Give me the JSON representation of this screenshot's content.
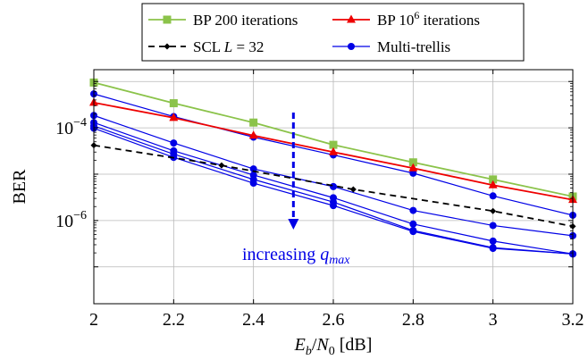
{
  "chart_data": {
    "type": "line",
    "title": "",
    "xlabel": "E_b/N_0 [dB]",
    "ylabel": "BER",
    "yscale": "log",
    "xlim": [
      2,
      3.2
    ],
    "ylim": [
      1.6e-08,
      0.0018
    ],
    "x_ticks": [
      "2",
      "2.2",
      "2.4",
      "2.6",
      "2.8",
      "3",
      "3.2"
    ],
    "y_ticks": [
      {
        "base": "10",
        "exp": "−4",
        "value": 0.0001
      },
      {
        "base": "10",
        "exp": "−6",
        "value": 1e-06
      }
    ],
    "grid": true,
    "legend_position": "top",
    "annotation": {
      "text": "increasing",
      "var": "q",
      "sub": "max",
      "color": "#0000e6",
      "x": 2.5
    },
    "series": [
      {
        "name": "BP 200 iterations",
        "color": "#8bc34a",
        "marker": "square",
        "dash": false,
        "x": [
          2,
          2.2,
          2.4,
          2.6,
          2.8,
          3,
          3.2
        ],
        "y": [
          0.00095,
          0.00034,
          0.00013,
          4.3e-05,
          1.8e-05,
          7.7e-06,
          3.3e-06
        ]
      },
      {
        "name": "BP 10^6 iterations",
        "label_base": "BP 10",
        "label_sup": "6",
        "label_rest": " iterations",
        "color": "#ee0000",
        "marker": "triangle",
        "dash": false,
        "x": [
          2,
          2.2,
          2.4,
          2.6,
          2.8,
          3,
          3.2
        ],
        "y": [
          0.00035,
          0.000165,
          6.8e-05,
          3e-05,
          1.35e-05,
          5.8e-06,
          2.8e-06
        ]
      },
      {
        "name": "SCL L = 32",
        "label_base": "SCL ",
        "label_var": "L",
        "label_rest": " = 32",
        "color": "#000000",
        "marker": "diamond",
        "dash": true,
        "x": [
          2,
          2.32,
          2.65,
          3,
          3.2
        ],
        "y": [
          4.2e-05,
          1.55e-05,
          4.7e-06,
          1.6e-06,
          7.5e-07
        ]
      },
      {
        "name": "Multi-trellis",
        "color": "#0000e6",
        "marker": "circle",
        "dash": false,
        "x": [
          2,
          2.2,
          2.4,
          2.6,
          2.8,
          3,
          3.2
        ],
        "y": [
          0.00054,
          0.000175,
          6.3e-05,
          2.6e-05,
          1.05e-05,
          3.4e-06,
          1.3e-06
        ]
      },
      {
        "name": "",
        "color": "#0000e6",
        "marker": "circle",
        "dash": false,
        "x": [
          2,
          2.2,
          2.4,
          2.6,
          2.8,
          3,
          3.2
        ],
        "y": [
          0.000185,
          4.7e-05,
          1.3e-05,
          5.4e-06,
          1.65e-06,
          7.8e-07,
          4.7e-07
        ]
      },
      {
        "name": "",
        "color": "#0000e6",
        "marker": "circle",
        "dash": false,
        "x": [
          2,
          2.2,
          2.4,
          2.6,
          2.8,
          3,
          3.2
        ],
        "y": [
          0.00013,
          3.2e-05,
          9.6e-06,
          3.1e-06,
          8.4e-07,
          3.6e-07,
          1.9e-07
        ]
      },
      {
        "name": "",
        "color": "#0000e6",
        "marker": "circle",
        "dash": false,
        "x": [
          2,
          2.2,
          2.4,
          2.6,
          2.8,
          3,
          3.2
        ],
        "y": [
          0.00011,
          2.7e-05,
          7.7e-06,
          2.5e-06,
          6.1e-07,
          2.6e-07,
          1.9e-07
        ]
      },
      {
        "name": "",
        "color": "#0000e6",
        "marker": "circle",
        "dash": false,
        "x": [
          2,
          2.2,
          2.4,
          2.6,
          2.8,
          3,
          3.2
        ],
        "y": [
          9.8e-05,
          2.3e-05,
          6.4e-06,
          2.1e-06,
          5.8e-07,
          2.5e-07,
          1.9e-07
        ]
      }
    ]
  }
}
